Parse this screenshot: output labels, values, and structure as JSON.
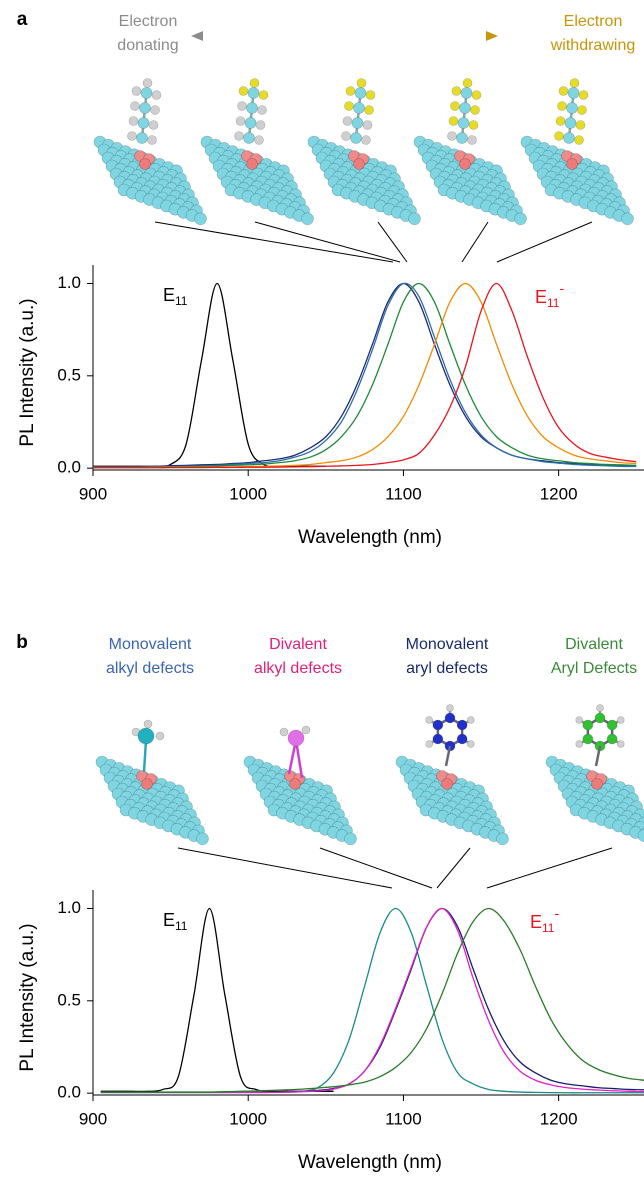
{
  "chart_data": [
    {
      "type": "line",
      "panel_label": "a",
      "headers": [
        {
          "text": [
            "Electron",
            "donating"
          ],
          "color": "#8c8c8c"
        },
        {
          "text": [
            "Electron",
            "withdrawing"
          ],
          "color": "#c8960a"
        }
      ],
      "annotations": [
        {
          "text": "E",
          "subscript": "11",
          "color": "#000000"
        },
        {
          "text": "E",
          "subscript": "11",
          "superscript": "-",
          "color": "#e8141e"
        }
      ],
      "xlabel": "Wavelength (nm)",
      "ylabel": "PL Intensity (a.u.)",
      "xlim": [
        900,
        1255
      ],
      "ylim": [
        -0.01,
        1.1
      ],
      "xticks": [
        900,
        1000,
        1100,
        1200
      ],
      "yticks": [
        {
          "value": 0,
          "label": "0.0"
        },
        {
          "value": 0.5,
          "label": "0.5"
        },
        {
          "value": 1,
          "label": "1.0"
        }
      ],
      "x": [
        900,
        910,
        920,
        930,
        940,
        950,
        960,
        970,
        980,
        990,
        1000,
        1010,
        1020,
        1030,
        1040,
        1050,
        1060,
        1070,
        1080,
        1090,
        1100,
        1110,
        1120,
        1130,
        1140,
        1150,
        1160,
        1170,
        1180,
        1190,
        1200,
        1210,
        1220,
        1230,
        1240,
        1250
      ],
      "series": [
        {
          "color": "#000000",
          "values": [
            0.01,
            0.01,
            0.01,
            0.01,
            0.01,
            0.02,
            0.13,
            0.59,
            1.0,
            0.59,
            0.13,
            0.02,
            0.01,
            0.01,
            0.01,
            0.01,
            null,
            null,
            null,
            null,
            null,
            null,
            null,
            null,
            null,
            null,
            null,
            null,
            null,
            null,
            null,
            null,
            null,
            null,
            null,
            null
          ]
        },
        {
          "color": "#1f2a7a",
          "values": [
            0.008,
            0.008,
            0.008,
            0.009,
            0.01,
            0.013,
            0.015,
            0.018,
            0.02,
            0.025,
            0.03,
            0.04,
            0.05,
            0.07,
            0.11,
            0.17,
            0.28,
            0.45,
            0.67,
            0.9,
            1.0,
            0.9,
            0.67,
            0.45,
            0.28,
            0.17,
            0.11,
            0.07,
            0.05,
            0.04,
            0.03,
            0.025,
            0.02,
            0.018,
            0.015,
            0.013
          ]
        },
        {
          "color": "#2e6fa8",
          "values": [
            0.005,
            0.005,
            0.005,
            0.006,
            0.007,
            0.008,
            0.01,
            0.012,
            0.015,
            0.02,
            0.025,
            0.03,
            0.04,
            0.06,
            0.09,
            0.15,
            0.25,
            0.42,
            0.64,
            0.88,
            1.0,
            0.93,
            0.71,
            0.48,
            0.3,
            0.18,
            0.11,
            0.07,
            0.05,
            0.035,
            0.027,
            0.02,
            0.016,
            0.013,
            0.01,
            0.009
          ]
        },
        {
          "color": "#1e8a3a",
          "values": [
            0.005,
            0.005,
            0.005,
            0.005,
            0.006,
            0.007,
            0.008,
            0.01,
            0.012,
            0.015,
            0.018,
            0.022,
            0.03,
            0.04,
            0.06,
            0.1,
            0.17,
            0.28,
            0.45,
            0.67,
            0.9,
            1.0,
            0.9,
            0.67,
            0.45,
            0.28,
            0.17,
            0.11,
            0.07,
            0.05,
            0.04,
            0.03,
            0.025,
            0.02,
            0.018,
            0.015
          ]
        },
        {
          "color": "#f08c00",
          "values": [
            0.003,
            0.003,
            0.003,
            0.003,
            0.004,
            0.004,
            0.005,
            0.005,
            0.006,
            0.007,
            0.008,
            0.01,
            0.012,
            0.015,
            0.02,
            0.03,
            0.04,
            0.06,
            0.1,
            0.17,
            0.28,
            0.45,
            0.67,
            0.9,
            1.0,
            0.9,
            0.67,
            0.45,
            0.28,
            0.17,
            0.11,
            0.07,
            0.05,
            0.04,
            0.03,
            0.025
          ]
        },
        {
          "color": "#e8141e",
          "values": [
            0.002,
            0.002,
            0.002,
            0.002,
            0.002,
            0.003,
            0.003,
            0.003,
            0.004,
            0.004,
            0.005,
            0.005,
            0.006,
            0.007,
            0.008,
            0.01,
            0.012,
            0.015,
            0.02,
            0.03,
            0.045,
            0.08,
            0.18,
            0.33,
            0.55,
            0.85,
            1.0,
            0.85,
            0.6,
            0.38,
            0.22,
            0.13,
            0.08,
            0.06,
            0.045,
            0.035
          ]
        }
      ]
    },
    {
      "type": "line",
      "panel_label": "b",
      "headers": [
        {
          "text": [
            "Monovalent",
            "alkyl defects"
          ],
          "color": "#3c64b4"
        },
        {
          "text": [
            "Divalent",
            "alkyl defects"
          ],
          "color": "#e0207a"
        },
        {
          "text": [
            "Monovalent",
            "aryl defects"
          ],
          "color": "#1a2a6c"
        },
        {
          "text": [
            "Divalent",
            "Aryl Defects"
          ],
          "color": "#3a8a3a"
        }
      ],
      "annotations": [
        {
          "text": "E",
          "subscript": "11",
          "color": "#000000"
        },
        {
          "text": "E",
          "subscript": "11",
          "superscript": "-",
          "color": "#e8141e"
        }
      ],
      "xlabel": "Wavelength (nm)",
      "ylabel": "PL Intensity (a.u.)",
      "xlim": [
        900,
        1255
      ],
      "ylim": [
        -0.01,
        1.1
      ],
      "xticks": [
        900,
        1000,
        1100,
        1200
      ],
      "yticks": [
        {
          "value": 0,
          "label": "0.0"
        },
        {
          "value": 0.5,
          "label": "0.5"
        },
        {
          "value": 1,
          "label": "1.0"
        }
      ],
      "x": [
        905,
        915,
        925,
        935,
        945,
        955,
        965,
        975,
        985,
        995,
        1005,
        1015,
        1025,
        1035,
        1045,
        1055,
        1065,
        1075,
        1085,
        1095,
        1105,
        1115,
        1125,
        1135,
        1145,
        1155,
        1165,
        1175,
        1185,
        1195,
        1205,
        1215,
        1225,
        1235,
        1245,
        1255
      ],
      "series": [
        {
          "color": "#000000",
          "values": [
            0.01,
            0.01,
            0.01,
            0.01,
            0.02,
            0.09,
            0.53,
            1.0,
            0.53,
            0.09,
            0.02,
            0.01,
            0.01,
            0.01,
            0.01,
            0.01,
            null,
            null,
            null,
            null,
            null,
            null,
            null,
            null,
            null,
            null,
            null,
            null,
            null,
            null,
            null,
            null,
            null,
            null,
            null,
            null
          ]
        },
        {
          "color": "#1a8a8a",
          "values": [
            0.003,
            0.003,
            0.003,
            0.003,
            0.003,
            0.003,
            0.003,
            0.003,
            0.003,
            0.003,
            0.003,
            0.004,
            0.005,
            0.01,
            0.03,
            0.11,
            0.29,
            0.58,
            0.87,
            1.0,
            0.87,
            0.58,
            0.29,
            0.11,
            0.05,
            0.02,
            0.01,
            0.006,
            0.004,
            0.003,
            0.002,
            0.002,
            0.002,
            0.002,
            0.002,
            0.002
          ]
        },
        {
          "color": "#1a1a6e",
          "values": [
            0.005,
            0.005,
            0.005,
            0.005,
            0.005,
            0.005,
            0.005,
            0.005,
            0.005,
            0.005,
            0.005,
            0.005,
            0.008,
            0.01,
            0.015,
            0.025,
            0.05,
            0.12,
            0.25,
            0.45,
            0.67,
            0.9,
            1.0,
            0.9,
            0.67,
            0.45,
            0.28,
            0.17,
            0.11,
            0.07,
            0.05,
            0.04,
            0.03,
            0.025,
            0.02,
            0.018
          ]
        },
        {
          "color": "#e020c8",
          "values": [
            0.004,
            0.004,
            0.004,
            0.004,
            0.004,
            0.004,
            0.004,
            0.004,
            0.004,
            0.004,
            0.004,
            0.004,
            0.006,
            0.008,
            0.012,
            0.022,
            0.05,
            0.12,
            0.26,
            0.46,
            0.68,
            0.9,
            1.0,
            0.88,
            0.62,
            0.39,
            0.22,
            0.12,
            0.07,
            0.045,
            0.03,
            0.022,
            0.017,
            0.013,
            0.01,
            0.008
          ]
        },
        {
          "color": "#2a7a2a",
          "values": [
            0.006,
            0.006,
            0.006,
            0.006,
            0.006,
            0.006,
            0.006,
            0.006,
            0.008,
            0.01,
            0.012,
            0.015,
            0.018,
            0.022,
            0.028,
            0.035,
            0.045,
            0.06,
            0.09,
            0.14,
            0.22,
            0.35,
            0.54,
            0.76,
            0.93,
            1.0,
            0.93,
            0.78,
            0.58,
            0.4,
            0.27,
            0.18,
            0.13,
            0.1,
            0.08,
            0.07
          ]
        }
      ]
    }
  ]
}
